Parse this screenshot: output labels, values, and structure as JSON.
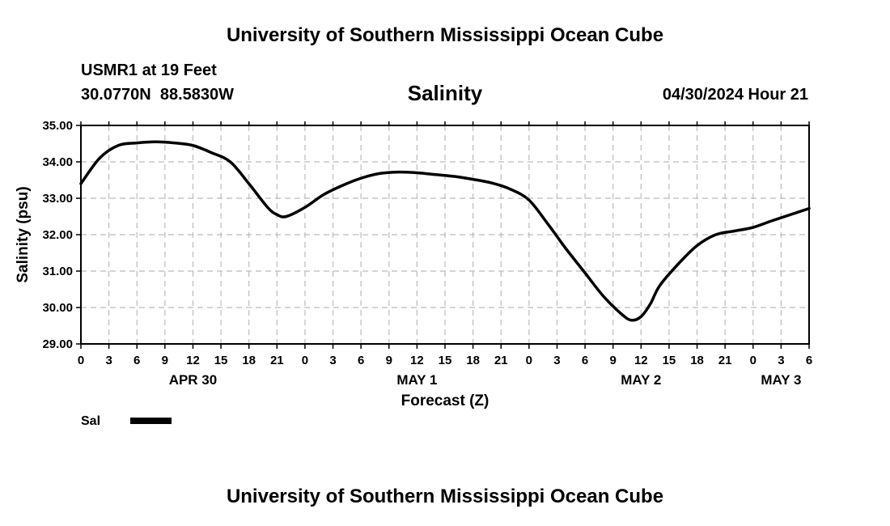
{
  "header": {
    "title": "University of Southern Mississippi Ocean Cube",
    "station": "USMR1 at 19 Feet",
    "coords": "30.0770N  88.5830W",
    "variable": "Salinity",
    "datetime": "04/30/2024 Hour 21"
  },
  "footer": {
    "title": "University of Southern Mississippi Ocean Cube"
  },
  "legend": {
    "label": "Sal"
  },
  "colors": {
    "line": "#000000",
    "grid": "#bbbbbb",
    "background": "#ffffff"
  },
  "chart_data": {
    "type": "line",
    "title": "Salinity",
    "xlabel": "Forecast (Z)",
    "ylabel": "Salinity (psu)",
    "ylim": [
      29,
      35
    ],
    "yticks": [
      "29.00",
      "30.00",
      "31.00",
      "32.00",
      "33.00",
      "34.00",
      "35.00"
    ],
    "x_ticks": [
      "0",
      "3",
      "6",
      "9",
      "12",
      "15",
      "18",
      "21",
      "0",
      "3",
      "6",
      "9",
      "12",
      "15",
      "18",
      "21",
      "0",
      "3",
      "6",
      "9",
      "12",
      "15",
      "18",
      "21",
      "0",
      "3",
      "6"
    ],
    "day_labels": [
      {
        "label": "APR 30",
        "hour": 12
      },
      {
        "label": "MAY 1",
        "hour": 36
      },
      {
        "label": "MAY 2",
        "hour": 60
      },
      {
        "label": "MAY 3",
        "hour": 75
      }
    ],
    "xlim_hours": [
      0,
      78
    ],
    "grid": true,
    "legend_position": "bottom-left",
    "series": [
      {
        "name": "Sal",
        "hours": [
          0,
          2,
          4,
          6,
          8,
          10,
          12,
          14,
          16,
          18,
          20,
          21,
          22,
          24,
          26,
          28,
          30,
          32,
          34,
          36,
          38,
          40,
          42,
          44,
          46,
          48,
          50,
          51,
          52,
          54,
          56,
          58,
          59,
          60,
          61,
          62,
          64,
          66,
          68,
          70,
          72,
          74,
          76,
          78
        ],
        "values": [
          33.4,
          34.1,
          34.45,
          34.52,
          34.55,
          34.52,
          34.45,
          34.25,
          34.0,
          33.4,
          32.75,
          32.55,
          32.5,
          32.75,
          33.1,
          33.35,
          33.55,
          33.68,
          33.72,
          33.7,
          33.65,
          33.6,
          33.52,
          33.42,
          33.25,
          32.95,
          32.3,
          31.95,
          31.6,
          30.95,
          30.3,
          29.8,
          29.65,
          29.75,
          30.1,
          30.6,
          31.2,
          31.7,
          32.0,
          32.1,
          32.2,
          32.38,
          32.55,
          32.72
        ]
      }
    ]
  }
}
